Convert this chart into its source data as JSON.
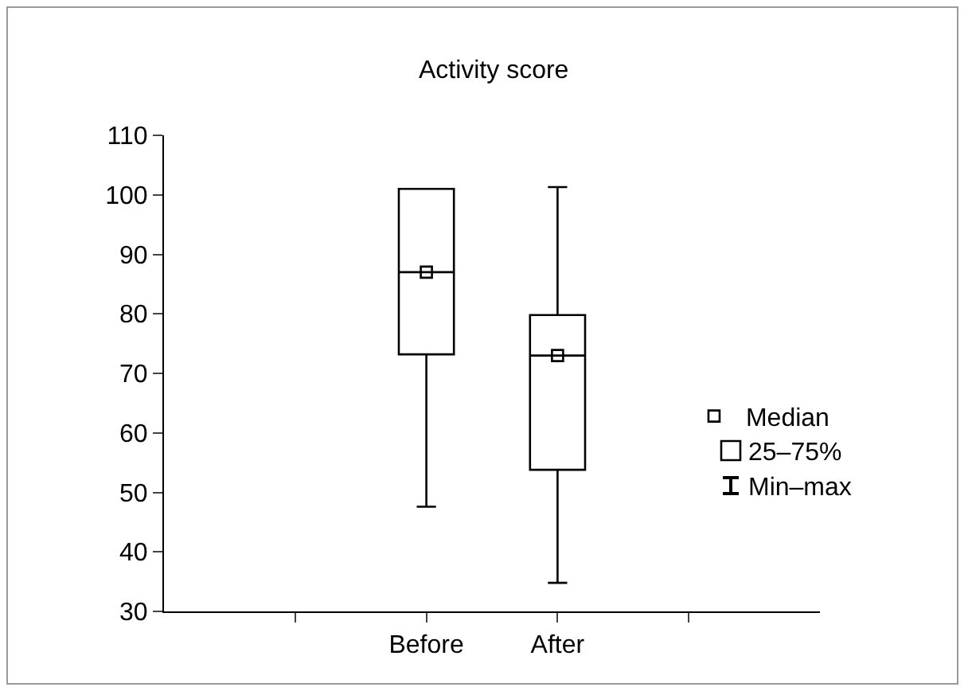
{
  "chart_data": {
    "type": "box",
    "title": "Activity score",
    "categories": [
      "Before",
      "After"
    ],
    "boxes": [
      {
        "low": 47.6,
        "q1": 73.2,
        "median": 87,
        "q3": 101,
        "high": 101
      },
      {
        "low": 34.8,
        "q1": 53.8,
        "median": 73,
        "q3": 79.8,
        "high": 101.3
      }
    ],
    "color": "#000000",
    "series": [
      {
        "type": "scatter",
        "name": "Median",
        "color": "#000000",
        "x": [
          "Before",
          "After"
        ],
        "values": [
          87,
          73
        ]
      }
    ],
    "legend": "right",
    "ylim": [
      30,
      110
    ],
    "yticks": [
      30,
      40,
      50,
      60,
      70,
      80,
      90,
      100,
      110
    ],
    "grid": false,
    "marker": "square",
    "annotations": [
      "25–75%",
      "Min–max"
    ]
  }
}
